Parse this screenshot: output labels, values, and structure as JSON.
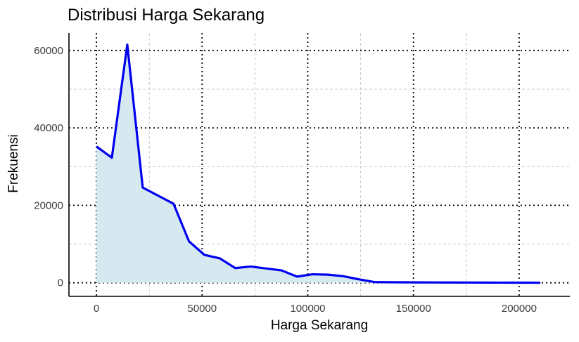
{
  "chart_data": {
    "type": "area",
    "title": "Distribusi Harga Sekarang",
    "xlabel": "Harga Sekarang",
    "ylabel": "Frekuensi",
    "xlim": [
      -13000,
      224000
    ],
    "ylim": [
      -3500,
      64500
    ],
    "x_ticks": [
      0,
      50000,
      100000,
      150000,
      200000
    ],
    "y_ticks": [
      0,
      20000,
      40000,
      60000
    ],
    "x_minor_ticks": [
      25000,
      75000,
      125000,
      175000
    ],
    "y_minor_ticks": [
      10000,
      30000,
      50000
    ],
    "grid": true,
    "line_color": "#0000ee",
    "fill_color": "#d6e9f1",
    "series": [
      {
        "x": [
          0,
          7300,
          14600,
          21900,
          29200,
          36500,
          43800,
          51100,
          58400,
          65700,
          73000,
          80300,
          87600,
          94900,
          102200,
          109500,
          116800,
          124100,
          131400,
          138700,
          146000,
          153300,
          160600,
          167900,
          175200,
          182500,
          189800,
          197100,
          204400,
          210000
        ],
        "y": [
          35200,
          32300,
          61500,
          24600,
          22500,
          20400,
          10700,
          7200,
          6300,
          3800,
          4200,
          3700,
          3200,
          1600,
          2200,
          2100,
          1700,
          900,
          200,
          150,
          120,
          100,
          90,
          80,
          70,
          60,
          50,
          40,
          30,
          20
        ]
      }
    ]
  }
}
